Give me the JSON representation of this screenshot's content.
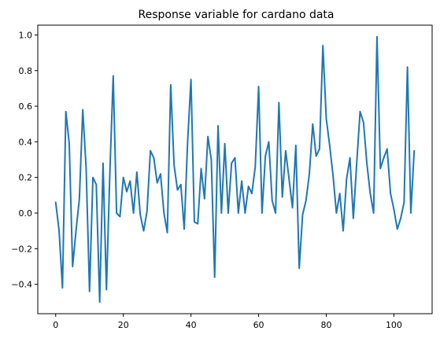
{
  "chart_data": {
    "type": "line",
    "title": "Response variable for cardano data",
    "xlabel": "",
    "ylabel": "",
    "xlim": [
      -5.3,
      111.3
    ],
    "ylim": [
      -0.565,
      1.055
    ],
    "grid": false,
    "x_ticks": [
      0,
      20,
      40,
      60,
      80,
      100
    ],
    "x_tick_labels": [
      "0",
      "20",
      "40",
      "60",
      "80",
      "100"
    ],
    "y_ticks": [
      -0.4,
      -0.2,
      0.0,
      0.2,
      0.4,
      0.6,
      0.8,
      1.0
    ],
    "y_tick_labels": [
      "−0.4",
      "−0.2",
      "0.0",
      "0.2",
      "0.4",
      "0.6",
      "0.8",
      "1.0"
    ],
    "series": [
      {
        "color": "#1f77b4",
        "x": [
          0,
          1,
          2,
          3,
          4,
          5,
          6,
          7,
          8,
          9,
          10,
          11,
          12,
          13,
          14,
          15,
          16,
          17,
          18,
          19,
          20,
          21,
          22,
          23,
          24,
          25,
          26,
          27,
          28,
          29,
          30,
          31,
          32,
          33,
          34,
          35,
          36,
          37,
          38,
          39,
          40,
          41,
          42,
          43,
          44,
          45,
          46,
          47,
          48,
          49,
          50,
          51,
          52,
          53,
          54,
          55,
          56,
          57,
          58,
          59,
          60,
          61,
          62,
          63,
          64,
          65,
          66,
          67,
          68,
          69,
          70,
          71,
          72,
          73,
          74,
          75,
          76,
          77,
          78,
          79,
          80,
          81,
          82,
          83,
          84,
          85,
          86,
          87,
          88,
          89,
          90,
          91,
          92,
          93,
          94,
          95,
          96,
          97,
          98,
          99,
          100,
          101,
          102,
          103,
          104,
          105,
          106
        ],
        "values": [
          0.06,
          -0.1,
          -0.42,
          0.57,
          0.39,
          -0.3,
          -0.1,
          0.08,
          0.58,
          0.25,
          -0.44,
          0.2,
          0.16,
          -0.5,
          0.28,
          -0.43,
          0.22,
          0.77,
          0.0,
          -0.02,
          0.2,
          0.12,
          0.18,
          0.0,
          0.23,
          -0.01,
          -0.1,
          0.01,
          0.35,
          0.31,
          0.17,
          0.22,
          0.0,
          -0.11,
          0.72,
          0.27,
          0.13,
          0.16,
          -0.09,
          0.4,
          0.75,
          -0.05,
          -0.06,
          0.25,
          0.08,
          0.43,
          0.3,
          -0.36,
          0.49,
          0.0,
          0.39,
          0.0,
          0.28,
          0.31,
          0.0,
          0.18,
          0.0,
          0.15,
          0.11,
          0.26,
          0.71,
          0.0,
          0.32,
          0.4,
          0.07,
          0.0,
          0.62,
          0.09,
          0.35,
          0.19,
          0.03,
          0.38,
          -0.31,
          -0.01,
          0.07,
          0.22,
          0.5,
          0.32,
          0.36,
          0.94,
          0.53,
          0.38,
          0.21,
          0.0,
          0.11,
          -0.1,
          0.19,
          0.31,
          -0.03,
          0.28,
          0.57,
          0.51,
          0.28,
          0.11,
          0.0,
          0.99,
          0.25,
          0.31,
          0.36,
          0.11,
          0.02,
          -0.09,
          -0.03,
          0.06,
          0.82,
          0.0,
          0.35
        ]
      }
    ]
  }
}
